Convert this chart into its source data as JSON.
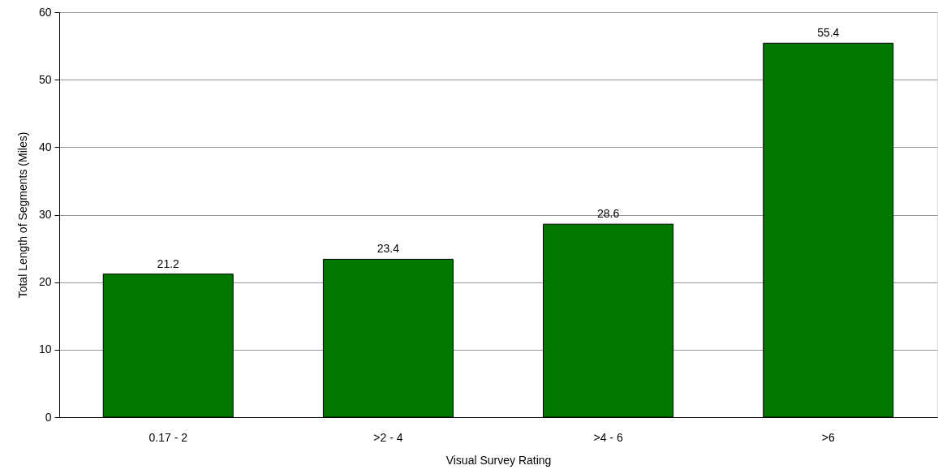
{
  "chart_data": {
    "type": "bar",
    "xlabel": "Visual Survey Rating",
    "ylabel": "Total Length of Segments (Miles)",
    "categories": [
      "0.17 - 2",
      ">2 - 4",
      ">4 - 6",
      ">6"
    ],
    "values": [
      21.2,
      23.4,
      28.6,
      55.4
    ],
    "color": "#007800",
    "ylim": [
      0,
      60
    ],
    "yticks": [
      0,
      10,
      20,
      30,
      40,
      50,
      60
    ],
    "grid": "y",
    "data_labels": true
  }
}
